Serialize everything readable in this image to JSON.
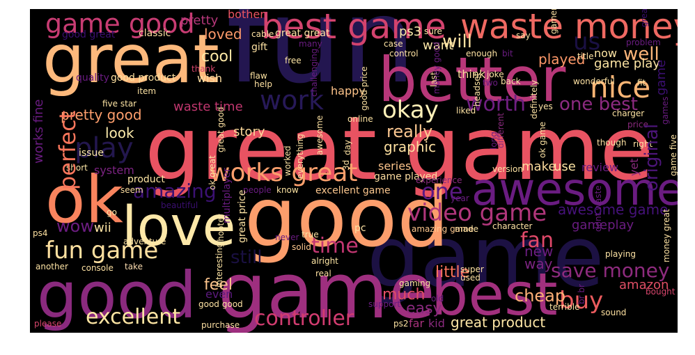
{
  "words": [
    {
      "text": "fun",
      "color": "#231650"
    },
    {
      "text": "great game",
      "color": "#e85362"
    },
    {
      "text": "good",
      "color": "#fc9e6c"
    },
    {
      "text": "game",
      "color": "#9e2f7f"
    },
    {
      "text": "great",
      "color": "#fdb97c"
    },
    {
      "text": "better",
      "color": "#b73779"
    },
    {
      "text": "ok",
      "color": "#f9845e"
    },
    {
      "text": "good",
      "color": "#8a2a7e"
    },
    {
      "text": "best",
      "color": "#a2307e"
    },
    {
      "text": "awesome",
      "color": "#6a1c81"
    },
    {
      "text": "love",
      "color": "#fde8a9"
    },
    {
      "text": "waste money",
      "color": "#ef6962"
    },
    {
      "text": "best game",
      "color": "#d3436e"
    },
    {
      "text": "game good",
      "color": "#c83c73"
    },
    {
      "text": "game",
      "color": "#1c1143"
    },
    {
      "text": "nice",
      "color": "#fcb575"
    },
    {
      "text": "works great",
      "color": "#fca06d"
    },
    {
      "text": "okay",
      "color": "#fdf0b8"
    },
    {
      "text": "work",
      "color": "#271958"
    },
    {
      "text": "excellent",
      "color": "#fde5a3"
    },
    {
      "text": "controller",
      "color": "#d13c70"
    },
    {
      "text": "fun game",
      "color": "#fde0a0"
    },
    {
      "text": "video game",
      "color": "#b0367b"
    },
    {
      "text": "buy",
      "color": "#eb5b5e"
    },
    {
      "text": "save money",
      "color": "#8e2b7e"
    },
    {
      "text": "play",
      "color": "#23174e"
    },
    {
      "text": "perfect",
      "color": "#f8765c"
    },
    {
      "text": "one",
      "color": "#5a1983"
    },
    {
      "text": "amazing",
      "color": "#3b1172"
    },
    {
      "text": "time",
      "color": "#c33772"
    },
    {
      "text": "fan",
      "color": "#e1496a"
    },
    {
      "text": "worth",
      "color": "#701f81"
    },
    {
      "text": "one best",
      "color": "#8c2a80"
    },
    {
      "text": "well",
      "color": "#fcb67a"
    },
    {
      "text": "us",
      "color": "#1a1043"
    },
    {
      "text": "original",
      "color": "#4c1579"
    },
    {
      "text": "really",
      "color": "#fcc891"
    },
    {
      "text": "awesome game",
      "color": "#46127a"
    },
    {
      "text": "pretty good",
      "color": "#fe9f6d"
    },
    {
      "text": "waste time",
      "color": "#c1376f"
    },
    {
      "text": "great product",
      "color": "#fde6a6"
    },
    {
      "text": "cheap",
      "color": "#feb077"
    },
    {
      "text": "feel",
      "color": "#fec68e"
    },
    {
      "text": "little",
      "color": "#f9735c"
    },
    {
      "text": "much",
      "color": "#e24e66"
    },
    {
      "text": "easy",
      "color": "#8a2a7e"
    },
    {
      "text": "wow",
      "color": "#6c1d81"
    },
    {
      "text": "still",
      "color": "#1a1042"
    },
    {
      "text": "graphic",
      "color": "#fde0a0"
    },
    {
      "text": "game play",
      "color": "#fde5a4"
    },
    {
      "text": "cool",
      "color": "#fde8a6"
    },
    {
      "text": "will",
      "color": "#fce1a2"
    },
    {
      "text": "played",
      "color": "#fd9869"
    },
    {
      "text": "new",
      "color": "#6b1d81"
    },
    {
      "text": "way",
      "color": "#7d2482"
    },
    {
      "text": "review",
      "color": "#6a1c81"
    },
    {
      "text": "gameplay",
      "color": "#6a1c81"
    },
    {
      "text": "amazon",
      "color": "#e04f66"
    },
    {
      "text": "look",
      "color": "#fcebab"
    },
    {
      "text": "story",
      "color": "#fcd99a"
    },
    {
      "text": "make",
      "color": "#fddc9e"
    },
    {
      "text": "use",
      "color": "#fde5a4"
    },
    {
      "text": "loved",
      "color": "#fd9a6a"
    },
    {
      "text": "bother",
      "color": "#ea5462"
    },
    {
      "text": "pretty",
      "color": "#b6377a"
    },
    {
      "text": "want",
      "color": "#fde7a7"
    },
    {
      "text": "think",
      "color": "#fddda0"
    },
    {
      "text": "now",
      "color": "#fde5a4"
    },
    {
      "text": "wish",
      "color": "#fcdda0"
    },
    {
      "text": "ps3",
      "color": "#fcecab"
    },
    {
      "text": "series",
      "color": "#fcc48b"
    },
    {
      "text": "system",
      "color": "#7c2382"
    },
    {
      "text": "far",
      "color": "#a8327d"
    },
    {
      "text": "kid",
      "color": "#8a2a7e"
    },
    {
      "text": "wii",
      "color": "#fde4a4"
    },
    {
      "text": "even",
      "color": "#5c1a7f"
    },
    {
      "text": "works fine",
      "color": "#6a1c81"
    },
    {
      "text": "happy",
      "color": "#fec48a"
    },
    {
      "text": "classic",
      "color": "#fddfa1"
    },
    {
      "text": "excellent game",
      "color": "#fdc88f"
    },
    {
      "text": "game played",
      "color": "#fcdca0"
    },
    {
      "text": "good great",
      "color": "#3b0f70"
    },
    {
      "text": "quality",
      "color": "#6a1c81"
    },
    {
      "text": "good product",
      "color": "#fde0a0"
    },
    {
      "text": "cable",
      "color": "#fde2a3"
    },
    {
      "text": "great great",
      "color": "#fde3a4"
    },
    {
      "text": "gift",
      "color": "#fde1a2"
    },
    {
      "text": "free",
      "color": "#fde5a5"
    },
    {
      "text": "five star",
      "color": "#fde4a4"
    },
    {
      "text": "item",
      "color": "#fde3a3"
    },
    {
      "text": "thank",
      "color": "#d6456c"
    },
    {
      "text": "flaw",
      "color": "#fde3a3"
    },
    {
      "text": "help",
      "color": "#fde0a0"
    },
    {
      "text": "issue",
      "color": "#fde8a8"
    },
    {
      "text": "short",
      "color": "#fde6a6"
    },
    {
      "text": "product",
      "color": "#fde5a4"
    },
    {
      "text": "seem",
      "color": "#fddea0"
    },
    {
      "text": "go",
      "color": "#fde4a3"
    },
    {
      "text": "beautiful",
      "color": "#3b0f70"
    },
    {
      "text": "adventure",
      "color": "#fde3a3"
    },
    {
      "text": "ps4",
      "color": "#fde0a0"
    },
    {
      "text": "console",
      "color": "#fde1a2"
    },
    {
      "text": "take",
      "color": "#fdddb0"
    },
    {
      "text": "another",
      "color": "#fde3a4"
    },
    {
      "text": "please",
      "color": "#d6456c"
    },
    {
      "text": "purchase",
      "color": "#fcdfa2"
    },
    {
      "text": "ps2",
      "color": "#fde3a3"
    },
    {
      "text": "good good",
      "color": "#fde2a3"
    },
    {
      "text": "interesting",
      "color": "#fde5a5"
    },
    {
      "text": "shooter",
      "color": "#fde6a6"
    },
    {
      "text": "people",
      "color": "#6a1c81"
    },
    {
      "text": "know",
      "color": "#fde4a3"
    },
    {
      "text": "never",
      "color": "#6a1c81"
    },
    {
      "text": "true",
      "color": "#fde2a2"
    },
    {
      "text": "real",
      "color": "#fde0a0"
    },
    {
      "text": "solid",
      "color": "#fdc88f"
    },
    {
      "text": "alright",
      "color": "#fde5a4"
    },
    {
      "text": "pc",
      "color": "#fde1a3"
    },
    {
      "text": "amazing game",
      "color": "#fdc88f"
    },
    {
      "text": "made",
      "color": "#fde3a3"
    },
    {
      "text": "character",
      "color": "#fde2a3"
    },
    {
      "text": "playing",
      "color": "#fde3a4"
    },
    {
      "text": "version",
      "color": "#fde3a4"
    },
    {
      "text": "super",
      "color": "#fde2a2"
    },
    {
      "text": "used",
      "color": "#fde2a2"
    },
    {
      "text": "gaming",
      "color": "#fde4a4"
    },
    {
      "text": "old",
      "color": "#6a1c81"
    },
    {
      "text": "support",
      "color": "#6a1c81"
    },
    {
      "text": "terrible",
      "color": "#fde6a6"
    },
    {
      "text": "sound",
      "color": "#fde0a0"
    },
    {
      "text": "bought",
      "color": "#d6456c"
    },
    {
      "text": "year",
      "color": "#6a1c81"
    },
    {
      "text": "experience",
      "color": "#8a2a7e"
    },
    {
      "text": "yet",
      "color": "#8a2a7e"
    },
    {
      "text": "right",
      "color": "#fde3a4"
    },
    {
      "text": "though",
      "color": "#fde1a2"
    },
    {
      "text": "price",
      "color": "#8a2a7e"
    },
    {
      "text": "charger",
      "color": "#fde3a3"
    },
    {
      "text": "yes",
      "color": "#fde3a4"
    },
    {
      "text": "liked",
      "color": "#fde2a3"
    },
    {
      "text": "online",
      "color": "#fde3a3"
    },
    {
      "text": "day",
      "color": "#fde1a2"
    },
    {
      "text": "3d",
      "color": "#fde3a4"
    },
    {
      "text": "joke",
      "color": "#fde3a4"
    },
    {
      "text": "back",
      "color": "#fde4a5"
    },
    {
      "text": "last",
      "color": "#fde1a2"
    },
    {
      "text": "two",
      "color": "#6a1c81"
    },
    {
      "text": "wonderful",
      "color": "#fde1a2"
    },
    {
      "text": "fit",
      "color": "#fde3a3"
    },
    {
      "text": "title",
      "color": "#fde3a4"
    },
    {
      "text": "problem",
      "color": "#6a1c81"
    },
    {
      "text": "enough",
      "color": "#fde2a3"
    },
    {
      "text": "bit",
      "color": "#6a1c81"
    },
    {
      "text": "say",
      "color": "#fde3a4"
    },
    {
      "text": "sure",
      "color": "#fde4a4"
    },
    {
      "text": "many",
      "color": "#6a1c81"
    },
    {
      "text": "control",
      "color": "#fde2a3"
    },
    {
      "text": "case",
      "color": "#fde3a4"
    },
    {
      "text": "good price",
      "color": "#fde2a3"
    },
    {
      "text": "challenging",
      "color": "#6a1c81"
    },
    {
      "text": "awesome",
      "color": "#fde2a3"
    },
    {
      "text": "great good",
      "color": "#fde2a3"
    },
    {
      "text": "multiplayer",
      "color": "#6a1c81"
    },
    {
      "text": "great price",
      "color": "#fde3a4"
    },
    {
      "text": "worked",
      "color": "#fde4a4"
    },
    {
      "text": "everything",
      "color": "#fde3a3"
    },
    {
      "text": "ok great",
      "color": "#fde3a4"
    },
    {
      "text": "great time",
      "color": "#3b0f70"
    },
    {
      "text": "dont waste",
      "color": "#6a1c81"
    },
    {
      "text": "money great",
      "color": "#fde2a3"
    },
    {
      "text": "ok game",
      "color": "#fde3a3"
    },
    {
      "text": "money good",
      "color": "#6a1c81"
    },
    {
      "text": "headset",
      "color": "#fde4a4"
    },
    {
      "text": "definitely",
      "color": "#fde2a3"
    },
    {
      "text": "game five",
      "color": "#fde3a4"
    },
    {
      "text": "gamer",
      "color": "#fde3a4"
    },
    {
      "text": "br br",
      "color": "#6a1c81"
    },
    {
      "text": "different",
      "color": "#8a2a7e"
    },
    {
      "text": "long",
      "color": "#6a1c81"
    },
    {
      "text": "games",
      "color": "#6a1c81"
    },
    {
      "text": "game",
      "color": "#3b0f70"
    },
    {
      "text": "cave",
      "color": "#fde3a4"
    },
    {
      "text": "horrible",
      "color": "#fde3a4"
    },
    {
      "text": "bug",
      "color": "#fde3a4"
    }
  ]
}
